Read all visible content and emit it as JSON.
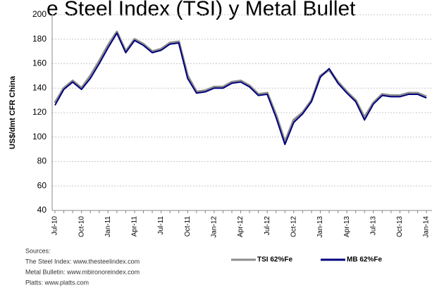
{
  "chart_data": {
    "type": "line",
    "title": "e Steel Index (TSI) y Metal Bullet",
    "y_label": "US$/dmt CFR China",
    "categories": [
      "Jul-10",
      null,
      null,
      "Oct-10",
      null,
      null,
      "Jan-11",
      null,
      null,
      "Apr-11",
      null,
      null,
      "Jul-11",
      null,
      null,
      "Oct-11",
      null,
      null,
      "Jan-12",
      null,
      null,
      "Apr-12",
      null,
      null,
      "Jul-12",
      null,
      null,
      "Oct-12",
      null,
      null,
      "Jan-13",
      null,
      null,
      "Apr-13",
      null,
      null,
      "Jul-13",
      null,
      null,
      "Oct-13",
      null,
      null,
      "Jan-14"
    ],
    "series": [
      {
        "name": "TSI 62%Fe",
        "color": "#8c8c8c",
        "values": [
          128,
          140,
          146,
          140,
          150,
          162,
          175,
          186,
          170,
          180,
          176,
          170,
          172,
          177,
          178,
          150,
          137,
          138,
          141,
          141,
          145,
          146,
          142,
          135,
          136,
          118,
          96,
          114,
          120,
          130,
          150,
          155,
          145,
          137,
          130,
          116,
          128,
          135,
          134,
          134,
          136,
          136,
          133
        ]
      },
      {
        "name": "MB 62%Fe",
        "color": "#000080",
        "values": [
          126,
          139,
          145,
          139,
          148,
          160,
          173,
          185,
          169,
          179,
          175,
          169,
          171,
          176,
          177,
          148,
          136,
          137,
          140,
          140,
          144,
          145,
          141,
          134,
          135,
          116,
          94,
          112,
          119,
          129,
          149,
          156,
          144,
          136,
          129,
          114,
          127,
          134,
          133,
          133,
          135,
          135,
          132
        ]
      }
    ],
    "ylim": [
      40,
      200
    ],
    "yticks": [
      40,
      60,
      80,
      100,
      120,
      140,
      160,
      180,
      200
    ],
    "grid": true,
    "sources": [
      "Sources:",
      "The Steel Index: www.thesteelindex.com",
      "Metal Bulletin: www.mbironoreindex.com",
      "Platts: www.platts.com"
    ]
  }
}
